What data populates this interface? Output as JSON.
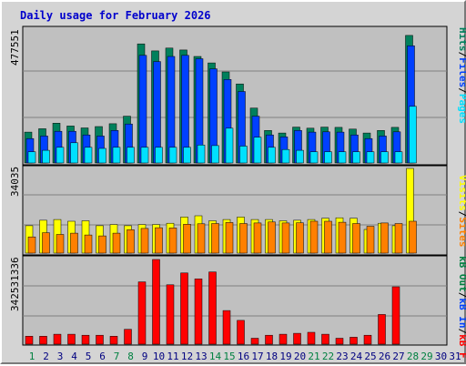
{
  "title": "Daily usage for February 2026",
  "colors": {
    "background": "#d4d4d4",
    "panel": "#c0c0c0",
    "hits": "#00805c",
    "files": "#0040ff",
    "pages": "#00e0ff",
    "visits": "#ffff00",
    "sites": "#ff8000",
    "kbf": "#ff0000",
    "weekend_day": "#008040",
    "weekday": "#000080"
  },
  "labels": {
    "pages": "Pages",
    "files": "Files",
    "hits": "Hits",
    "sites": "Sites",
    "visits": "Visits",
    "kbin": "kB In",
    "kbout": "kB Out",
    "kbf": "kB F",
    "sep": "/"
  },
  "chart_data": [
    {
      "type": "bar",
      "categories": [
        "1",
        "2",
        "3",
        "4",
        "5",
        "6",
        "7",
        "8",
        "9",
        "10",
        "11",
        "12",
        "13",
        "14",
        "15",
        "16",
        "17",
        "18",
        "19",
        "20",
        "21",
        "22",
        "23",
        "24",
        "25",
        "26",
        "27",
        "28",
        "29",
        "30",
        "31"
      ],
      "y_max_label": "477551",
      "ylim": [
        0,
        477551
      ],
      "series": [
        {
          "name": "Hits",
          "values": [
            110000,
            122000,
            142000,
            132000,
            125000,
            130000,
            140000,
            167000,
            425000,
            400000,
            410000,
            403000,
            380000,
            357000,
            325000,
            282000,
            196000,
            116000,
            107000,
            128000,
            124000,
            128000,
            127000,
            121000,
            107000,
            116000,
            127000,
            455000,
            null,
            null,
            null
          ]
        },
        {
          "name": "Files",
          "values": [
            87000,
            96000,
            113000,
            113000,
            100000,
            96000,
            116000,
            139000,
            384000,
            362000,
            380000,
            384000,
            372000,
            336000,
            298000,
            255000,
            167000,
            100000,
            93000,
            116000,
            110000,
            111000,
            110000,
            100000,
            87000,
            96000,
            111000,
            418000,
            null,
            null,
            null
          ]
        },
        {
          "name": "Pages",
          "values": [
            40000,
            45000,
            56000,
            72000,
            56000,
            52000,
            56000,
            56000,
            56000,
            56000,
            56000,
            56000,
            64000,
            62000,
            124000,
            60000,
            92000,
            56000,
            48000,
            45000,
            40000,
            40000,
            40000,
            40000,
            40000,
            40000,
            40000,
            202000,
            null,
            null,
            null
          ]
        }
      ]
    },
    {
      "type": "bar",
      "categories": [
        "1",
        "2",
        "3",
        "4",
        "5",
        "6",
        "7",
        "8",
        "9",
        "10",
        "11",
        "12",
        "13",
        "14",
        "15",
        "16",
        "17",
        "18",
        "19",
        "20",
        "21",
        "22",
        "23",
        "24",
        "25",
        "26",
        "27",
        "28",
        "29",
        "30",
        "31"
      ],
      "y_max_label": "34035",
      "ylim": [
        0,
        34035
      ],
      "series": [
        {
          "name": "Visits",
          "values": [
            11000,
            13200,
            13500,
            12800,
            13000,
            11000,
            11500,
            11000,
            11500,
            11500,
            12000,
            14500,
            15000,
            13000,
            13500,
            14500,
            13500,
            13500,
            13000,
            13200,
            13500,
            14000,
            14200,
            14000,
            9500,
            12000,
            11000,
            34035,
            null,
            null,
            null
          ]
        },
        {
          "name": "Sites",
          "values": [
            6500,
            8200,
            7500,
            8000,
            7300,
            6900,
            8000,
            9400,
            9900,
            10200,
            10100,
            11600,
            11800,
            11900,
            12300,
            11900,
            12100,
            12500,
            12100,
            12200,
            12800,
            12800,
            12400,
            11900,
            10800,
            12100,
            11900,
            12800,
            null,
            null,
            null
          ]
        }
      ]
    },
    {
      "type": "bar",
      "categories": [
        "1",
        "2",
        "3",
        "4",
        "5",
        "6",
        "7",
        "8",
        "9",
        "10",
        "11",
        "12",
        "13",
        "14",
        "15",
        "16",
        "17",
        "18",
        "19",
        "20",
        "21",
        "22",
        "23",
        "24",
        "25",
        "26",
        "27",
        "28",
        "29",
        "30",
        "31"
      ],
      "y_max_label": "342531336",
      "ylim": [
        0,
        342531336
      ],
      "series": [
        {
          "name": "kB F",
          "values": [
            32000000,
            32000000,
            40000000,
            40000000,
            36000000,
            36000000,
            32000000,
            60000000,
            252000000,
            342531336,
            240000000,
            288000000,
            264000000,
            292000000,
            136000000,
            96000000,
            24000000,
            36000000,
            40000000,
            44000000,
            48000000,
            40000000,
            24000000,
            28000000,
            36000000,
            120000000,
            232000000,
            null,
            null,
            null,
            null
          ]
        }
      ]
    }
  ],
  "day_colors": [
    "weekend",
    "weekday",
    "weekday",
    "weekday",
    "weekday",
    "weekday",
    "weekend",
    "weekend",
    "weekday",
    "weekday",
    "weekday",
    "weekday",
    "weekday",
    "weekend",
    "weekend",
    "weekday",
    "weekday",
    "weekday",
    "weekday",
    "weekday",
    "weekend",
    "weekend",
    "weekday",
    "weekday",
    "weekday",
    "weekday",
    "weekday",
    "weekend",
    "weekend",
    "weekday",
    "weekday"
  ]
}
